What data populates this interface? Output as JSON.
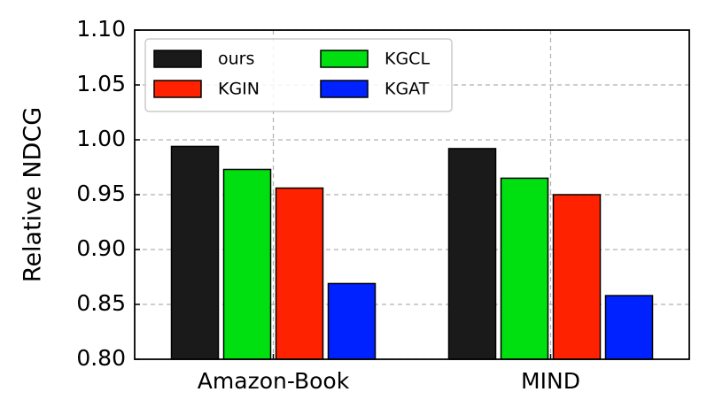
{
  "chart_data": {
    "type": "bar",
    "ylabel": "Relative NDCG",
    "categories": [
      "Amazon-Book",
      "MIND"
    ],
    "series": [
      {
        "name": "ours",
        "color": "#1a1a1a",
        "values": [
          0.994,
          0.992
        ]
      },
      {
        "name": "KGCL",
        "color": "#00e010",
        "values": [
          0.973,
          0.965
        ]
      },
      {
        "name": "KGIN",
        "color": "#ff2200",
        "values": [
          0.956,
          0.95
        ]
      },
      {
        "name": "KGAT",
        "color": "#0022ff",
        "values": [
          0.869,
          0.858
        ]
      }
    ],
    "ylim": [
      0.8,
      1.1
    ],
    "yticks": [
      {
        "value": 0.8,
        "label": "0.80"
      },
      {
        "value": 0.85,
        "label": "0.85"
      },
      {
        "value": 0.9,
        "label": "0.90"
      },
      {
        "value": 0.95,
        "label": "0.95"
      },
      {
        "value": 1.0,
        "label": "1.00"
      },
      {
        "value": 1.05,
        "label": "1.05"
      },
      {
        "value": 1.1,
        "label": "1.10"
      }
    ],
    "grid": true,
    "legend": "upper left"
  }
}
